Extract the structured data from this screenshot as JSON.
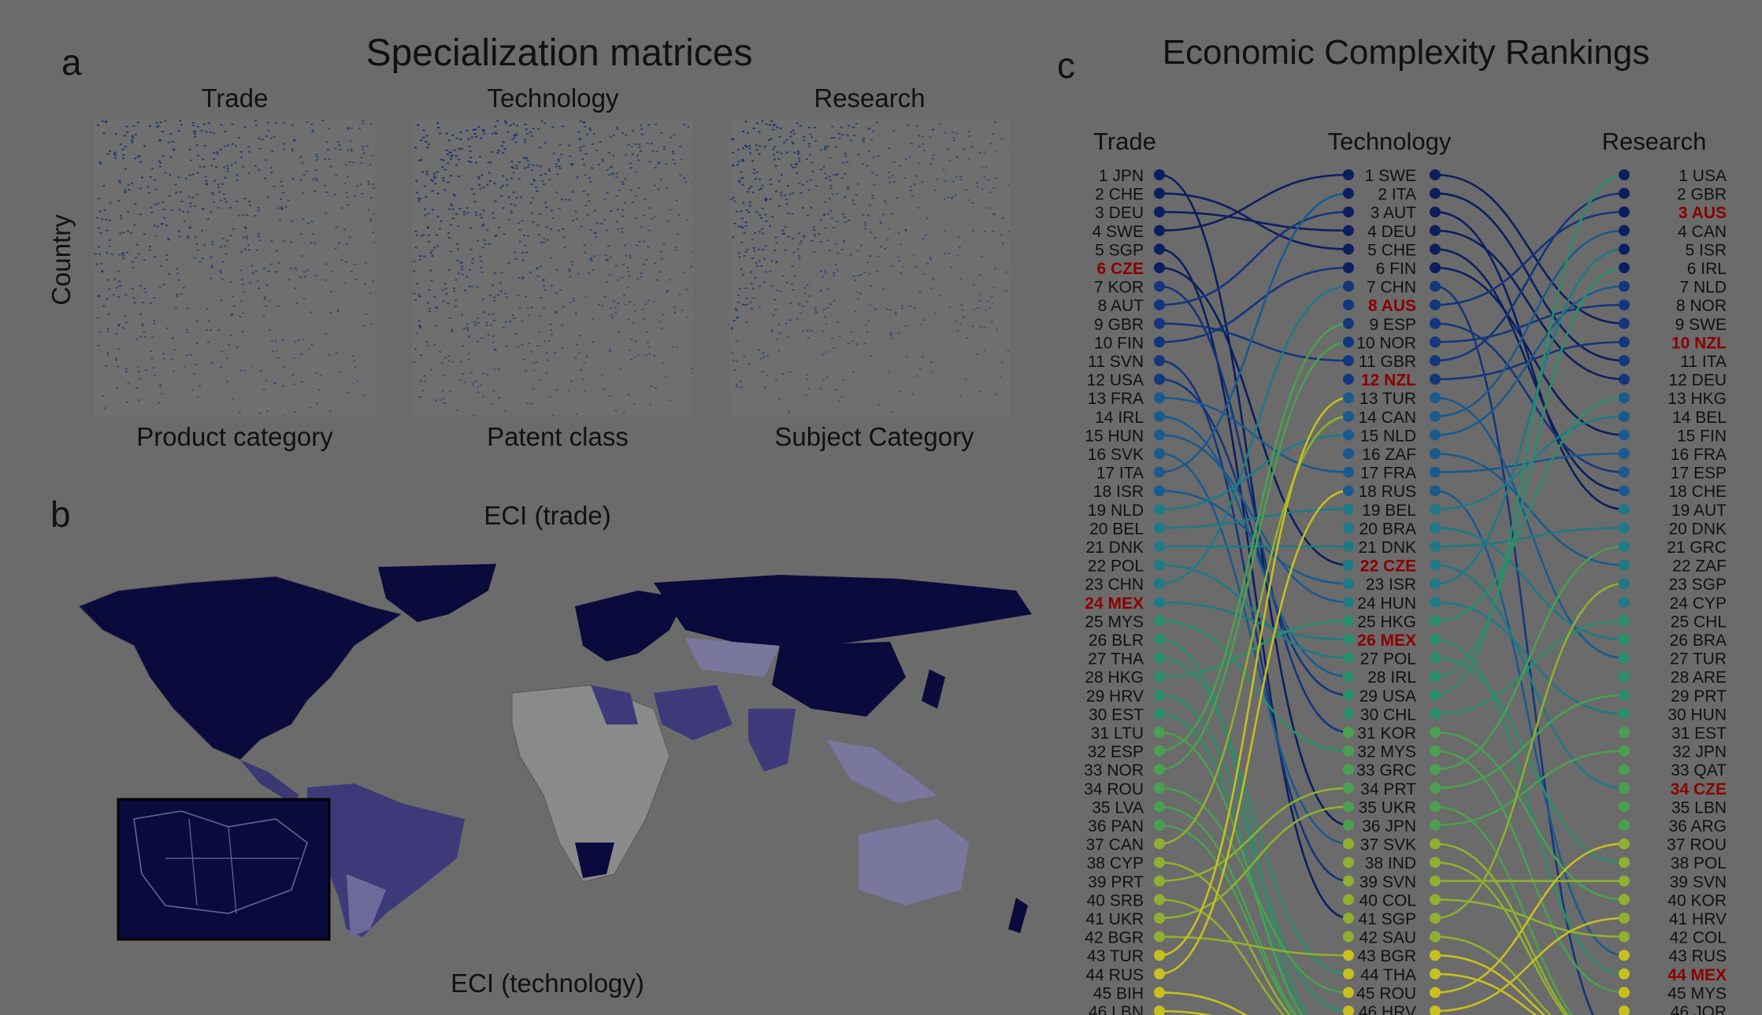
{
  "panel_a": {
    "letter": "a",
    "title": "Specialization matrices",
    "ylabel": "Country",
    "matrices": [
      {
        "title": "Trade",
        "xlabel": "Product category"
      },
      {
        "title": "Technology",
        "xlabel": "Patent class"
      },
      {
        "title": "Research",
        "xlabel": "Subject Category"
      }
    ]
  },
  "panel_b": {
    "letter": "b",
    "title_top": "ECI (trade)",
    "title_bottom": "ECI (technology)"
  },
  "panel_c": {
    "letter": "c",
    "title": "Economic Complexity Rankings",
    "columns": [
      "Trade",
      "Technology",
      "Research"
    ]
  },
  "chart_data": {
    "type": "table",
    "title": "Economic Complexity Rankings",
    "columns": [
      "Trade",
      "Technology",
      "Research"
    ],
    "highlighted": [
      "CZE",
      "MEX",
      "AUS",
      "NZL"
    ],
    "rankings": {
      "Trade": [
        "JPN",
        "CHE",
        "DEU",
        "SWE",
        "SGP",
        "CZE",
        "KOR",
        "AUT",
        "GBR",
        "FIN",
        "SVN",
        "USA",
        "FRA",
        "IRL",
        "HUN",
        "SVK",
        "ITA",
        "ISR",
        "NLD",
        "BEL",
        "DNK",
        "POL",
        "CHN",
        "MEX",
        "MYS",
        "BLR",
        "THA",
        "HKG",
        "HRV",
        "EST",
        "LTU",
        "ESP",
        "NOR",
        "ROU",
        "LVA",
        "PAN",
        "CAN",
        "CYP",
        "PRT",
        "SRB",
        "UKR",
        "BGR",
        "TUR",
        "RUS",
        "BIH",
        "LBN"
      ],
      "Technology": [
        "SWE",
        "ITA",
        "AUT",
        "DEU",
        "CHE",
        "FIN",
        "CHN",
        "AUS",
        "ESP",
        "NOR",
        "GBR",
        "NZL",
        "TUR",
        "CAN",
        "NLD",
        "ZAF",
        "FRA",
        "RUS",
        "BEL",
        "BRA",
        "DNK",
        "CZE",
        "ISR",
        "HUN",
        "HKG",
        "MEX",
        "POL",
        "IRL",
        "USA",
        "CHL",
        "KOR",
        "MYS",
        "GRC",
        "PRT",
        "UKR",
        "JPN",
        "SVK",
        "IND",
        "SVN",
        "COL",
        "SGP",
        "SAU",
        "BGR",
        "THA",
        "ROU",
        "HRV"
      ],
      "Research": [
        "USA",
        "GBR",
        "AUS",
        "CAN",
        "ISR",
        "IRL",
        "NLD",
        "NOR",
        "SWE",
        "NZL",
        "ITA",
        "DEU",
        "HKG",
        "BEL",
        "FIN",
        "FRA",
        "ESP",
        "CHE",
        "AUT",
        "DNK",
        "GRC",
        "ZAF",
        "SGP",
        "CYP",
        "CHL",
        "BRA",
        "TUR",
        "ARE",
        "PRT",
        "HUN",
        "EST",
        "JPN",
        "QAT",
        "CZE",
        "LBN",
        "ARG",
        "ROU",
        "POL",
        "SVN",
        "KOR",
        "HRV",
        "COL",
        "RUS",
        "MEX",
        "MYS",
        "JOR"
      ]
    }
  }
}
